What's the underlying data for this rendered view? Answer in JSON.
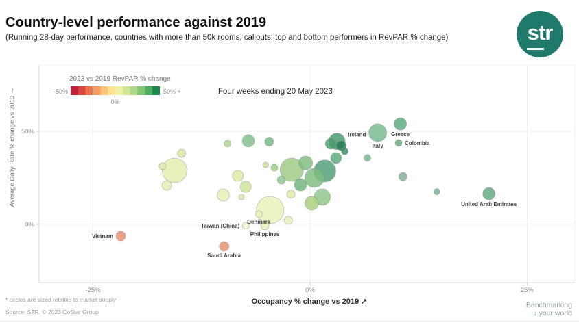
{
  "header": {
    "title": "Country-level performance against 2019",
    "subtitle": "(Running 28-day performance, countries with more than 50k rooms, callouts: top and bottom performers in RevPAR % change)",
    "logo_text": "str"
  },
  "legend": {
    "title": "2023 vs 2019 RevPAR % change",
    "min_label": "-50%",
    "mid_label": "0%",
    "max_label": "50% +",
    "gradient": [
      "#BE2138",
      "#D84840",
      "#EE724B",
      "#F89E5E",
      "#FDC57C",
      "#FBE392",
      "#EEF0A3",
      "#D3E695",
      "#ADD786",
      "#84C576",
      "#4FAC63",
      "#1C894B"
    ]
  },
  "chart_data": {
    "type": "scatter",
    "title": "Country-level performance against 2019",
    "period_annotation": "Four weeks ending 20 May 2023",
    "xlabel": "Occupancy % change vs 2019 ↗",
    "ylabel": "Average Daily Rate % change vs 2019 →",
    "xlim": [
      -31.2,
      30.5
    ],
    "ylim": [
      -31.3,
      85.7
    ],
    "grid": true,
    "legend_position": "top-left",
    "size_note": "circle size proportional to market supply",
    "xticks": [
      {
        "value": -25,
        "label": "-25%"
      },
      {
        "value": 0,
        "label": "0%"
      },
      {
        "value": 25,
        "label": "25%"
      }
    ],
    "yticks": [
      {
        "value": 0,
        "label": "0%"
      },
      {
        "value": 50,
        "label": "50%"
      }
    ],
    "points": [
      {
        "label": "Vietnam",
        "occ": -21.8,
        "adr": -6.3,
        "r": 7,
        "color": "#E98F6E",
        "label_side": "left"
      },
      {
        "label": "Saudi Arabia",
        "occ": -9.9,
        "adr": -11.8,
        "r": 7,
        "color": "#E8906C",
        "label_side": "below"
      },
      {
        "label": "Taiwan (China)",
        "occ": -7.4,
        "adr": -0.7,
        "r": 5,
        "color": "#EDF2BE",
        "label_side": "left"
      },
      {
        "label": "Denmark",
        "occ": -5.9,
        "adr": 5.5,
        "r": 5,
        "color": "#E9F0B6",
        "label_side": "below"
      },
      {
        "label": "Philippines",
        "occ": -5.2,
        "adr": -0.7,
        "r": 6,
        "color": "#E9F0B6",
        "label_side": "below"
      },
      {
        "label": "United Arab Emirates",
        "occ": 20.6,
        "adr": 16.5,
        "r": 9,
        "color": "#5FA981",
        "label_side": "below"
      },
      {
        "label": "Ireland",
        "occ": 3.1,
        "adr": 44.6,
        "r": 12,
        "color": "#44966B",
        "label_side": "top-right"
      },
      {
        "label": "Italy",
        "occ": 7.8,
        "adr": 49.3,
        "r": 13,
        "color": "#74B88D",
        "label_side": "below"
      },
      {
        "label": "Greece",
        "occ": 10.4,
        "adr": 54.0,
        "r": 9,
        "color": "#57A87D",
        "label_side": "below"
      },
      {
        "label": "Colombia",
        "occ": 10.2,
        "adr": 43.8,
        "r": 5,
        "color": "#63AE7E",
        "label_side": "right"
      },
      {
        "label": "",
        "occ": -9.5,
        "adr": 43.4,
        "r": 5,
        "color": "#A9D389"
      },
      {
        "label": "",
        "occ": -7.1,
        "adr": 44.9,
        "r": 9,
        "color": "#7FBF8A"
      },
      {
        "label": "",
        "occ": -4.7,
        "adr": 44.5,
        "r": 6.5,
        "color": "#74BA86"
      },
      {
        "label": "",
        "occ": 6.6,
        "adr": 35.7,
        "r": 5,
        "color": "#74B88D"
      },
      {
        "label": "",
        "occ": 3.0,
        "adr": 35.7,
        "r": 8,
        "color": "#58A877"
      },
      {
        "label": "",
        "occ": 10.7,
        "adr": 25.7,
        "r": 6,
        "color": "#7FAE93"
      },
      {
        "label": "",
        "occ": 14.6,
        "adr": 17.6,
        "r": 4.5,
        "color": "#6FB287"
      },
      {
        "label": "",
        "occ": -2.1,
        "adr": 29.4,
        "r": 17,
        "color": "#9CCB83"
      },
      {
        "label": "",
        "occ": 1.7,
        "adr": 28.7,
        "r": 16,
        "color": "#4E9D77"
      },
      {
        "label": "",
        "occ": 0.5,
        "adr": 25.0,
        "r": 14,
        "color": "#7CBD7E"
      },
      {
        "label": "",
        "occ": -0.5,
        "adr": 33.1,
        "r": 10,
        "color": "#7CBD7E"
      },
      {
        "label": "",
        "occ": 1.4,
        "adr": 14.7,
        "r": 12,
        "color": "#8CC487"
      },
      {
        "label": "",
        "occ": 0.2,
        "adr": 11.4,
        "r": 10,
        "color": "#A8D17E"
      },
      {
        "label": "",
        "occ": -1.1,
        "adr": 21.3,
        "r": 9,
        "color": "#6CB37A"
      },
      {
        "label": "",
        "occ": -2.2,
        "adr": 16.2,
        "r": 6,
        "color": "#DCEBA2"
      },
      {
        "label": "",
        "occ": -15.6,
        "adr": 29.0,
        "r": 18,
        "color": "#E3EDAD"
      },
      {
        "label": "",
        "occ": -17.0,
        "adr": 31.3,
        "r": 5,
        "color": "#E0EBA8"
      },
      {
        "label": "",
        "occ": -14.8,
        "adr": 38.2,
        "r": 6,
        "color": "#D3E79E"
      },
      {
        "label": "",
        "occ": -16.5,
        "adr": 21.0,
        "r": 7,
        "color": "#E3EDAD"
      },
      {
        "label": "",
        "occ": -10.0,
        "adr": 15.8,
        "r": 9,
        "color": "#E7EFB3"
      },
      {
        "label": "",
        "occ": -8.3,
        "adr": 26.1,
        "r": 8,
        "color": "#DCEBA2"
      },
      {
        "label": "",
        "occ": -7.4,
        "adr": 20.2,
        "r": 8,
        "color": "#D0E49A"
      },
      {
        "label": "",
        "occ": -7.9,
        "adr": 14.7,
        "r": 4,
        "color": "#E0EBA8"
      },
      {
        "label": "",
        "occ": -4.6,
        "adr": 7.7,
        "r": 20,
        "color": "#EAF1B8"
      },
      {
        "label": "",
        "occ": -2.5,
        "adr": 2.2,
        "r": 6,
        "color": "#E7EFB3"
      },
      {
        "label": "",
        "occ": -5.1,
        "adr": 32.0,
        "r": 4,
        "color": "#C9E094"
      },
      {
        "label": "",
        "occ": -4.1,
        "adr": 30.5,
        "r": 5,
        "color": "#9CCB83"
      },
      {
        "label": "",
        "occ": -3.3,
        "adr": 23.9,
        "r": 6,
        "color": "#8CC487"
      },
      {
        "label": "",
        "occ": 3.6,
        "adr": 42.3,
        "r": 7,
        "color": "#1F7A52"
      },
      {
        "label": "",
        "occ": 4.0,
        "adr": 39.3,
        "r": 5,
        "color": "#2F8A5E"
      },
      {
        "label": "",
        "occ": 2.4,
        "adr": 43.4,
        "r": 8,
        "color": "#4A9C6E"
      }
    ]
  },
  "footer": {
    "note": "* circles are sized relative to market supply",
    "source": "Source: STR. © 2023 CoStar Group",
    "brand_line1": "Benchmarking",
    "brand_line2": "your world",
    "brand_arrow": "↓"
  }
}
